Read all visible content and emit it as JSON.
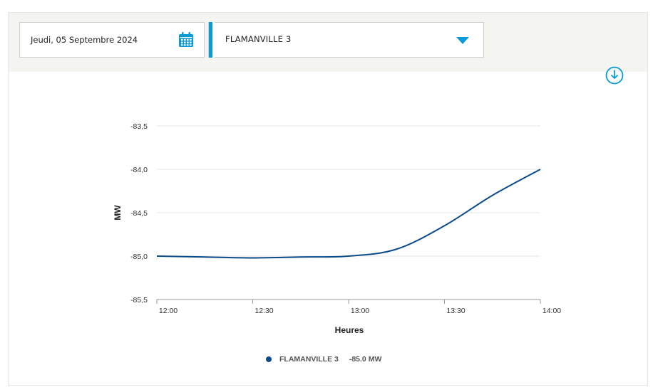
{
  "filters": {
    "date_value": "Jeudi, 05 Septembre 2024",
    "unit_value": "FLAMANVILLE 3"
  },
  "icons": {
    "calendar": "calendar-icon",
    "dropdown": "caret-down-icon",
    "download": "download-icon"
  },
  "colors": {
    "accent": "#0a9bd6",
    "series": "#0b4a8b",
    "toolbar_bg": "#f4f4f0"
  },
  "chart_data": {
    "type": "line",
    "title": "",
    "xlabel": "Heures",
    "ylabel": "MW",
    "ylim": [
      -85.5,
      -83.5
    ],
    "xlim": [
      "12:00",
      "14:00"
    ],
    "y_ticks": [
      "-83,5",
      "-84,0",
      "-84,5",
      "-85,0",
      "-85,5"
    ],
    "x_ticks": [
      "12:00",
      "12:30",
      "13:00",
      "13:30",
      "14:00"
    ],
    "grid": true,
    "legend_position": "bottom-center",
    "series": [
      {
        "name": "FLAMANVILLE 3",
        "legend_value": "-85.0 MW",
        "x": [
          "12:00",
          "12:15",
          "12:30",
          "12:45",
          "13:00",
          "13:15",
          "13:30",
          "13:45",
          "14:00"
        ],
        "values": [
          -85.0,
          -85.01,
          -85.02,
          -85.01,
          -85.0,
          -84.92,
          -84.65,
          -84.3,
          -84.0
        ]
      }
    ]
  }
}
